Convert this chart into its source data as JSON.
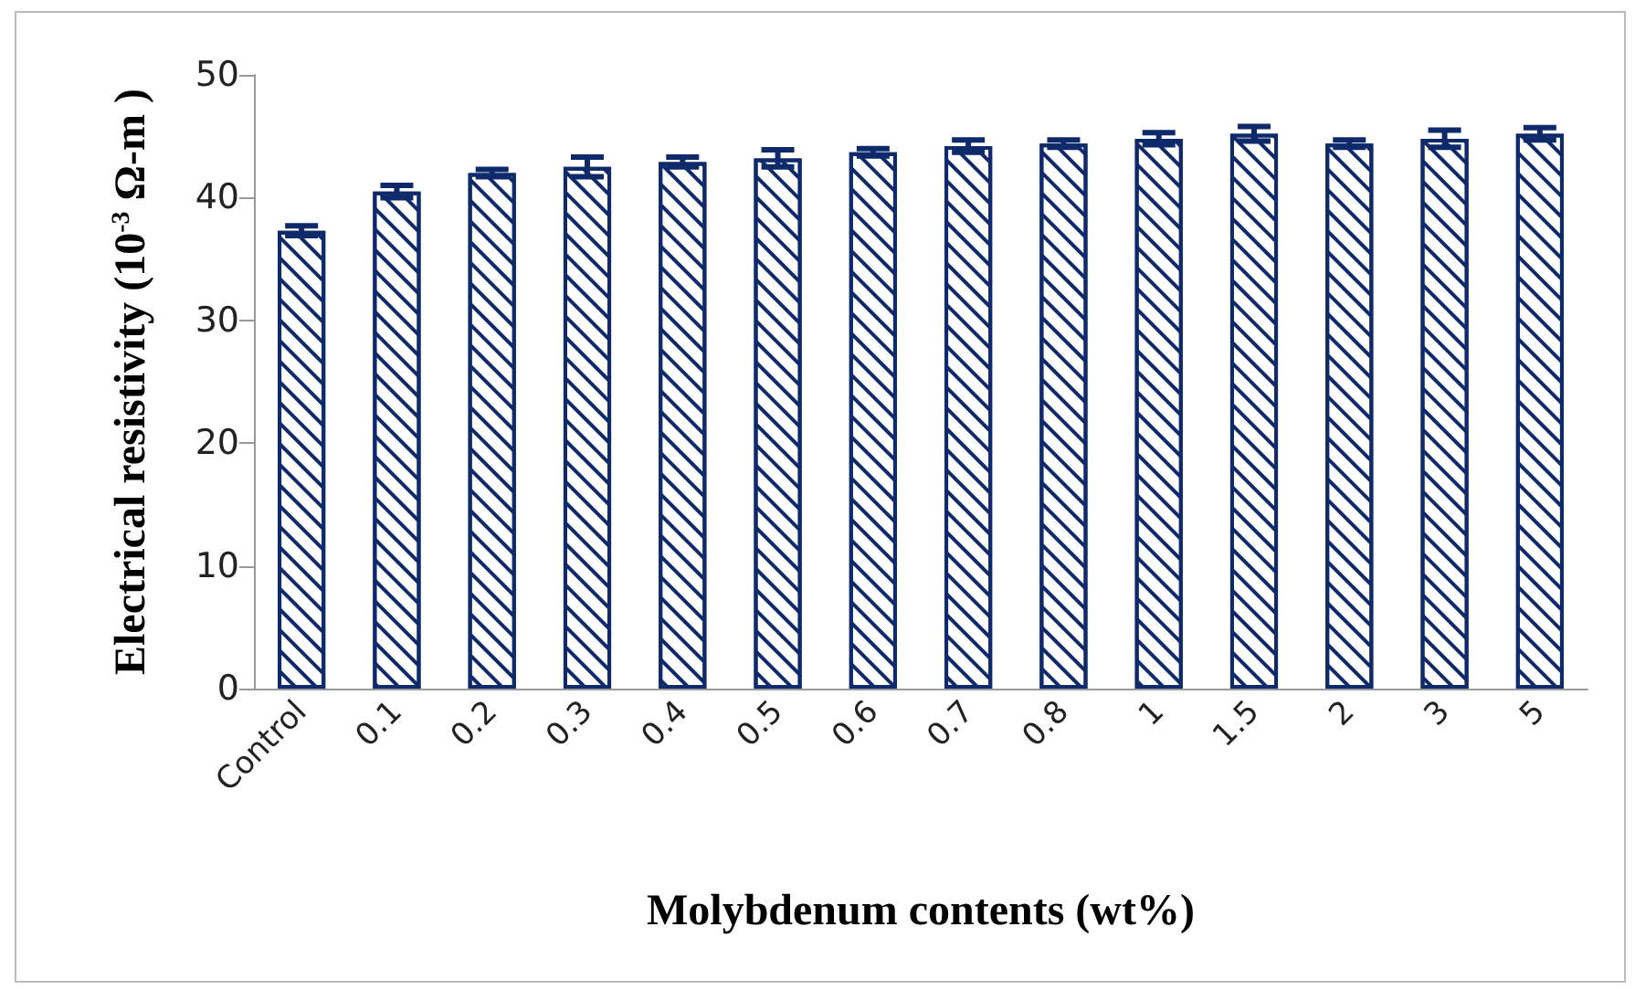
{
  "chart_data": {
    "type": "bar",
    "xlabel": "Molybdenum contents (wt%)",
    "ylabel": "Electrical resistivity (10$^{-3}$ Ω-m )",
    "categories": [
      "Control",
      "0.1",
      "0.2",
      "0.3",
      "0.4",
      "0.5",
      "0.6",
      "0.7",
      "0.8",
      "1",
      "1.5",
      "2",
      "3",
      "5"
    ],
    "values": [
      37.3,
      40.5,
      42,
      42.5,
      42.9,
      43.2,
      43.7,
      44.2,
      44.4,
      44.8,
      45.2,
      44.4,
      44.8,
      45.2
    ],
    "errors": [
      0.4,
      0.5,
      0.3,
      0.8,
      0.4,
      0.7,
      0.3,
      0.5,
      0.3,
      0.5,
      0.6,
      0.3,
      0.7,
      0.5
    ],
    "color": "#0f2a6b",
    "ylim": [
      0,
      50
    ],
    "yticks": [
      0,
      10,
      20,
      30,
      40,
      50
    ],
    "grid": false
  }
}
